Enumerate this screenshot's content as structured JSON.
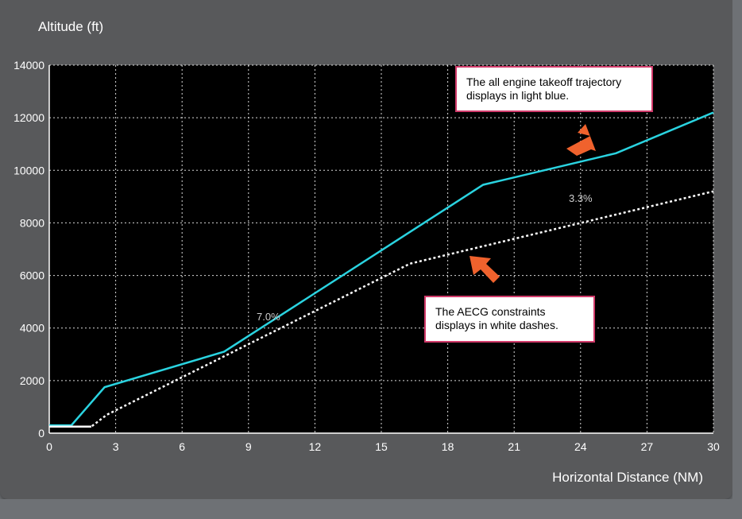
{
  "chart_data": {
    "type": "line",
    "ylabel": "Altitude (ft)",
    "xlabel": "Horizontal Distance (NM)",
    "xlim": [
      0,
      30
    ],
    "ylim": [
      0,
      14000
    ],
    "x_ticks": [
      0,
      3,
      6,
      9,
      12,
      15,
      18,
      21,
      24,
      27,
      30
    ],
    "y_ticks": [
      0,
      2000,
      4000,
      6000,
      8000,
      10000,
      12000,
      14000
    ],
    "grid": true,
    "series": [
      {
        "color": "#2ad3e0",
        "style": "solid",
        "x": [
          0,
          1.0,
          2.5,
          7.9,
          19.6,
          25.6,
          30
        ],
        "y": [
          300,
          300,
          1750,
          3100,
          9450,
          10650,
          12200
        ]
      },
      {
        "color": "#ffffff",
        "style": "dashed",
        "x": [
          0,
          1.9,
          2.6,
          16.3,
          30
        ],
        "y": [
          250,
          250,
          700,
          6450,
          9200
        ]
      }
    ],
    "annotations": [
      {
        "text": "7.0%",
        "x": 9.9,
        "y": 4300
      },
      {
        "text": "3.3%",
        "x": 24.0,
        "y": 8800
      }
    ]
  },
  "callouts": {
    "trajectory": "The all engine takeoff trajectory displays in light blue.",
    "constraints": "The AECG constraints displays in white dashes."
  },
  "colors": {
    "accent_arrow": "#f0622d",
    "callout_border": "#d13a6a"
  }
}
